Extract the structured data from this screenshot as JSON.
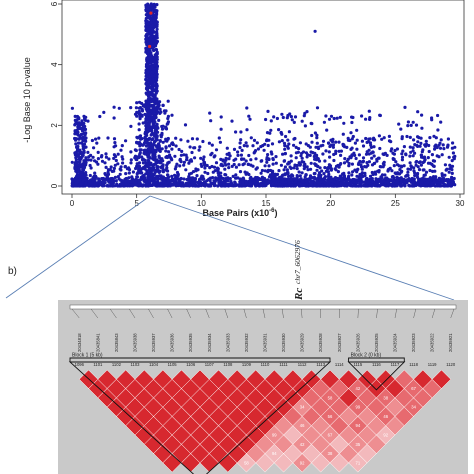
{
  "chart_data": [
    {
      "type": "scatter",
      "xlabel": "Base Pairs (x10",
      "xlabel_exp": "-6",
      "xlabel_close": ")",
      "ylabel": "-Log Base 10 p-value",
      "xlim": [
        0,
        30
      ],
      "ylim": [
        0,
        6
      ],
      "x_ticks": [
        "0",
        "5",
        "10",
        "15",
        "20",
        "25",
        "30"
      ],
      "y_ticks": [
        "0",
        "2",
        "4",
        "6"
      ],
      "grid": false,
      "marker_color": "#1a1aa8",
      "highlight_color": "#e0282a",
      "peak": {
        "x_range": [
          5.7,
          6.6
        ],
        "max_y": 6.0
      },
      "outliers": [
        {
          "x": 18.8,
          "y": 5.1
        }
      ],
      "highlighted": [
        {
          "x": 6.1,
          "y": 5.7
        },
        {
          "x": 6.0,
          "y": 4.6
        }
      ]
    },
    {
      "type": "heatmap",
      "panel_label": "b)",
      "annotation": "Rc",
      "annotation_sub": "chr7_6062976",
      "snp_ids": [
        "20434818",
        "20435841",
        "20435843",
        "20435938",
        "20435937",
        "20435936",
        "20435935",
        "20435934",
        "20435933",
        "20435932",
        "20435931",
        "20435930",
        "20435929",
        "20435928",
        "20435927",
        "20435926",
        "20435925",
        "20435924",
        "20435923",
        "20435922",
        "20435921"
      ],
      "blocks": [
        {
          "label": "Block 1 (5 kb)",
          "start": 0,
          "end": 13
        },
        {
          "label": "Block 2 (0 kb)",
          "start": 15,
          "end": 17
        }
      ],
      "marker_labels": [
        "1096",
        "1101",
        "1102",
        "1103",
        "1104",
        "1105",
        "1106",
        "1107",
        "1108",
        "1109",
        "1110",
        "1111",
        "1112",
        "1113",
        "1114",
        "1115",
        "1116",
        "1117",
        "1118",
        "1119",
        "1120"
      ],
      "ld_values_note": "D' in percent; 100 drawn as solid red",
      "ld_samples": [
        "58",
        "94",
        "99",
        "92",
        "42",
        "46",
        "38",
        "34",
        "67",
        "71",
        "56",
        "35"
      ],
      "colors": {
        "high": "#d7282f",
        "mid": "#ee8e91",
        "low": "#f6d8da",
        "frame": "#c9c9c9"
      }
    }
  ]
}
